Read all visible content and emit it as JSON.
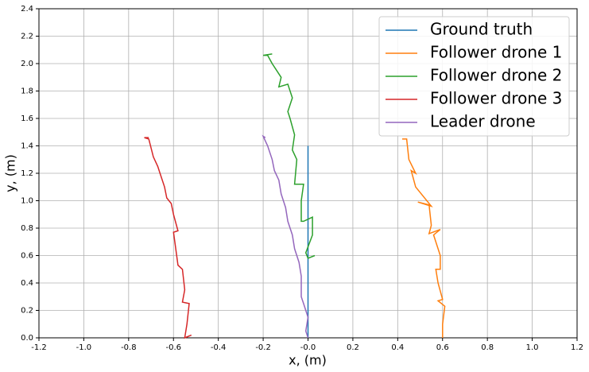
{
  "chart_data": {
    "type": "line",
    "xlabel": "x, (m)",
    "ylabel": "y, (m)",
    "xlim": [
      -1.2,
      1.2
    ],
    "ylim": [
      0,
      2.4
    ],
    "xticks": [
      -1.2,
      {
        "value": -1,
        "label": "-1.0"
      },
      -0.8,
      -0.6,
      -0.4,
      -0.2,
      {
        "value": 0,
        "label": "-0.0"
      },
      0.2,
      0.4,
      0.6,
      0.8,
      {
        "value": 1,
        "label": "1.0"
      },
      1.2
    ],
    "yticks": [
      {
        "value": 0,
        "label": "0.0"
      },
      0.2,
      0.4,
      0.6,
      0.8,
      {
        "value": 1,
        "label": "1.0"
      },
      1.2,
      1.4,
      1.6,
      1.8,
      {
        "value": 2,
        "label": "2.0"
      },
      2.2,
      2.4
    ],
    "grid": true,
    "legend": "upper right",
    "series": [
      {
        "name": "Ground truth",
        "color": "#1f77b4",
        "x": [
          0,
          0
        ],
        "values": [
          0,
          1.4
        ]
      },
      {
        "name": "Follower drone 1",
        "color": "#ff7f0e",
        "x": [
          0.6,
          0.6,
          0.61,
          0.58,
          0.6,
          0.58,
          0.57,
          0.59,
          0.59,
          0.56,
          0.59,
          0.54,
          0.55,
          0.54,
          0.49,
          0.55,
          0.48,
          0.46,
          0.48,
          0.45,
          0.44,
          0.42
        ],
        "values": [
          0,
          0.1,
          0.23,
          0.27,
          0.28,
          0.4,
          0.5,
          0.5,
          0.6,
          0.75,
          0.79,
          0.76,
          0.82,
          0.97,
          0.99,
          0.96,
          1.1,
          1.22,
          1.2,
          1.3,
          1.45,
          1.45
        ]
      },
      {
        "name": "Follower drone 2",
        "color": "#2ca02c",
        "x": [
          0.03,
          0,
          -0.01,
          0.02,
          0.02,
          -0.02,
          -0.03,
          -0.03,
          -0.02,
          -0.06,
          -0.05,
          -0.07,
          -0.06,
          -0.08,
          -0.09,
          -0.07,
          -0.09,
          -0.13,
          -0.12,
          -0.16,
          -0.18,
          -0.2,
          -0.16
        ],
        "values": [
          0.6,
          0.58,
          0.62,
          0.75,
          0.88,
          0.85,
          0.85,
          1,
          1.12,
          1.12,
          1.3,
          1.37,
          1.48,
          1.6,
          1.65,
          1.75,
          1.85,
          1.83,
          1.9,
          2,
          2.06,
          2.06,
          2.07
        ]
      },
      {
        "name": "Follower drone 3",
        "color": "#d62728",
        "x": [
          -0.52,
          -0.55,
          -0.54,
          -0.53,
          -0.56,
          -0.55,
          -0.56,
          -0.58,
          -0.59,
          -0.6,
          -0.58,
          -0.6,
          -0.61,
          -0.63,
          -0.64,
          -0.66,
          -0.67,
          -0.69,
          -0.71,
          -0.73,
          -0.71
        ],
        "values": [
          0.02,
          0,
          0.1,
          0.25,
          0.26,
          0.35,
          0.5,
          0.53,
          0.65,
          0.77,
          0.78,
          0.9,
          0.98,
          1.02,
          1.1,
          1.2,
          1.25,
          1.32,
          1.45,
          1.46,
          1.46
        ]
      },
      {
        "name": "Leader drone",
        "color": "#9467bd",
        "x": [
          0,
          -0.01,
          0,
          -0.02,
          -0.03,
          -0.03,
          -0.04,
          -0.06,
          -0.07,
          -0.09,
          -0.1,
          -0.12,
          -0.13,
          -0.15,
          -0.16,
          -0.18,
          -0.2,
          -0.19
        ],
        "values": [
          0,
          0.05,
          0.15,
          0.25,
          0.3,
          0.45,
          0.55,
          0.65,
          0.75,
          0.85,
          0.95,
          1.05,
          1.15,
          1.22,
          1.3,
          1.4,
          1.47,
          1.46
        ]
      }
    ]
  }
}
